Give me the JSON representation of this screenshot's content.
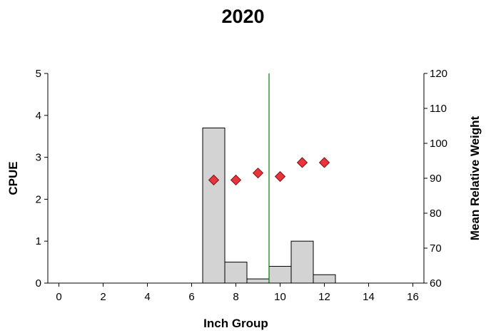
{
  "chart_data": {
    "type": "bar",
    "title": "2020",
    "xlabel": "Inch Group",
    "ylabel": "CPUE",
    "y2label": "Mean Relative Weight",
    "xlim": [
      -0.5,
      16.5
    ],
    "xticks": [
      0,
      2,
      4,
      6,
      8,
      10,
      12,
      14,
      16
    ],
    "ylim": [
      0,
      5
    ],
    "yticks": [
      0,
      1,
      2,
      3,
      4,
      5
    ],
    "y2lim": [
      60,
      120
    ],
    "y2ticks": [
      60,
      70,
      80,
      90,
      100,
      110,
      120
    ],
    "bar_color": "#d3d3d3",
    "marker_color": "#e8343c",
    "line_color": "#008000",
    "series": [
      {
        "type": "bar",
        "axis": "left",
        "x": [
          7,
          8,
          9,
          10,
          11,
          12
        ],
        "values": [
          3.7,
          0.5,
          0.1,
          0.4,
          1.0,
          0.2
        ]
      },
      {
        "type": "scatter",
        "axis": "right",
        "marker": "diamond",
        "x": [
          7,
          8,
          9,
          10,
          11,
          12
        ],
        "values": [
          89.5,
          89.5,
          91.5,
          90.5,
          94.5,
          94.5
        ]
      }
    ],
    "reference_line": {
      "x": 9.5
    },
    "grid": false,
    "legend": "none"
  }
}
